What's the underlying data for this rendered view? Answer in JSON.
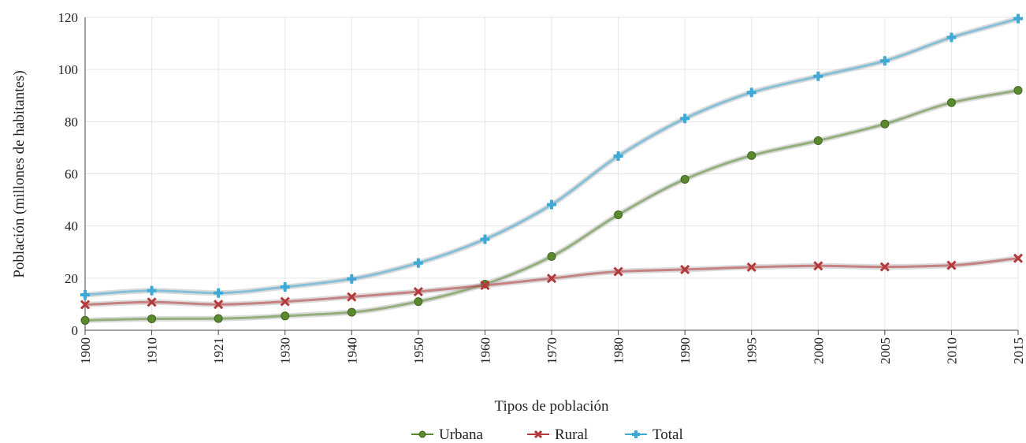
{
  "chart_data": {
    "type": "line",
    "xlabel": "Tipos de población",
    "ylabel": "Población (millones de habitantes)",
    "ylim": [
      0,
      120
    ],
    "yticks": [
      0,
      20,
      40,
      60,
      80,
      100,
      120
    ],
    "categories": [
      "1900",
      "1910",
      "1921",
      "1930",
      "1940",
      "1950",
      "1960",
      "1970",
      "1980",
      "1990",
      "1995",
      "2000",
      "2005",
      "2010",
      "2015"
    ],
    "grid": true,
    "legend_position": "bottom",
    "series": [
      {
        "name": "Urbana",
        "color": "#5b8a2e",
        "marker": "circle",
        "values": [
          3.8,
          4.4,
          4.5,
          5.5,
          6.9,
          11.0,
          17.7,
          28.3,
          44.3,
          57.9,
          67.0,
          72.7,
          79.1,
          87.3,
          92.0
        ]
      },
      {
        "name": "Rural",
        "color": "#b5393a",
        "marker": "x",
        "values": [
          9.8,
          10.8,
          9.9,
          11.0,
          12.8,
          14.8,
          17.2,
          19.9,
          22.5,
          23.3,
          24.2,
          24.7,
          24.3,
          24.9,
          27.6
        ]
      },
      {
        "name": "Total",
        "color": "#3fa9d6",
        "marker": "plus",
        "values": [
          13.6,
          15.2,
          14.3,
          16.6,
          19.7,
          25.8,
          34.9,
          48.2,
          66.8,
          81.2,
          91.2,
          97.4,
          103.3,
          112.3,
          119.5
        ]
      }
    ]
  }
}
